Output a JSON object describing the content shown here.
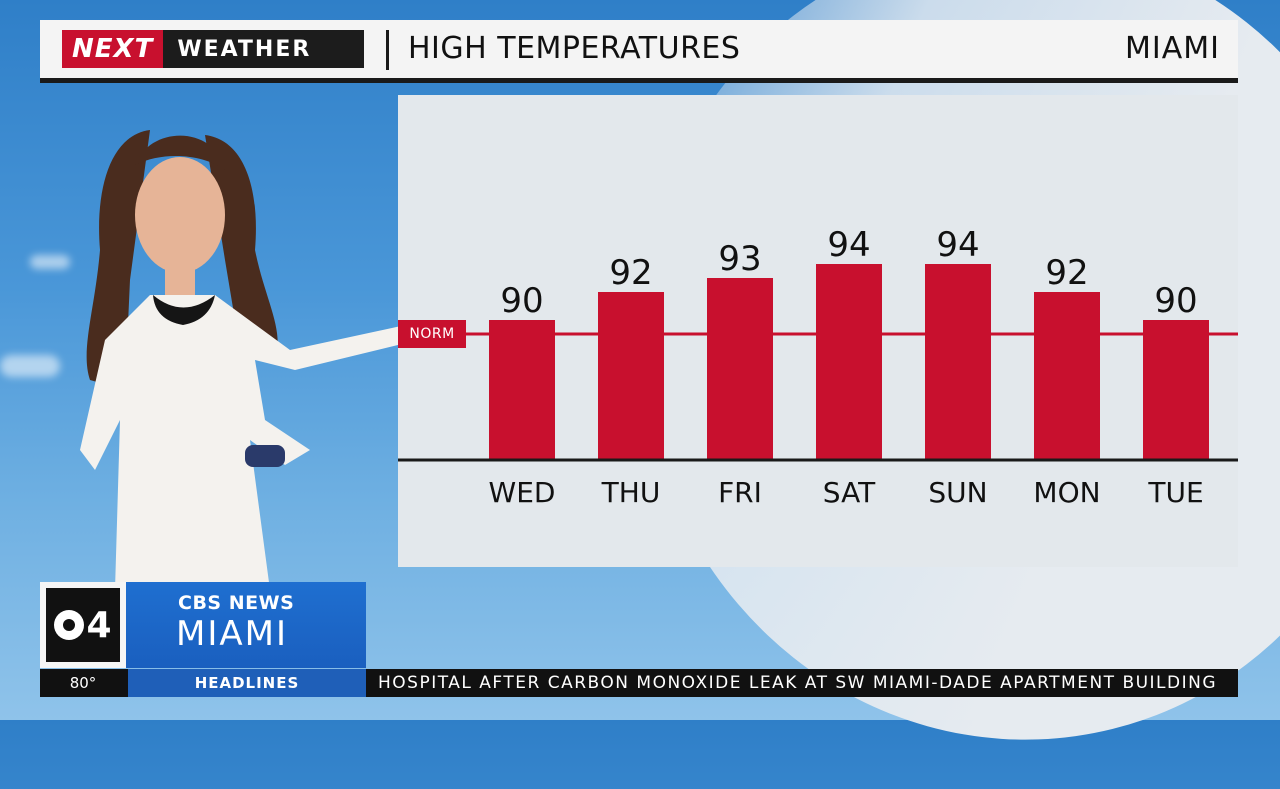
{
  "header": {
    "brand_next": "NEXT",
    "brand_weather": "WEATHER",
    "title": "HIGH TEMPERATURES",
    "city": "MIAMI"
  },
  "colors": {
    "bar": "#c8102e",
    "panel": "#e3e8ec",
    "norm_line": "#c8102e",
    "brand_blue": "#1f6fd0"
  },
  "chart_data": {
    "type": "bar",
    "categories": [
      "WED",
      "THU",
      "FRI",
      "SAT",
      "SUN",
      "MON",
      "TUE"
    ],
    "values": [
      90,
      92,
      93,
      94,
      94,
      92,
      90
    ],
    "title": "HIGH TEMPERATURES",
    "reference_line": {
      "label": "NORM",
      "value": 89
    },
    "ylim": [
      80,
      95
    ],
    "grid": false
  },
  "logo": {
    "channel_number": "4",
    "network": "CBS NEWS",
    "city": "MIAMI"
  },
  "ticker": {
    "temperature": "80°",
    "section": "HEADLINES",
    "headline": "HOSPITAL AFTER CARBON MONOXIDE LEAK AT SW MIAMI-DADE APARTMENT BUILDING"
  }
}
